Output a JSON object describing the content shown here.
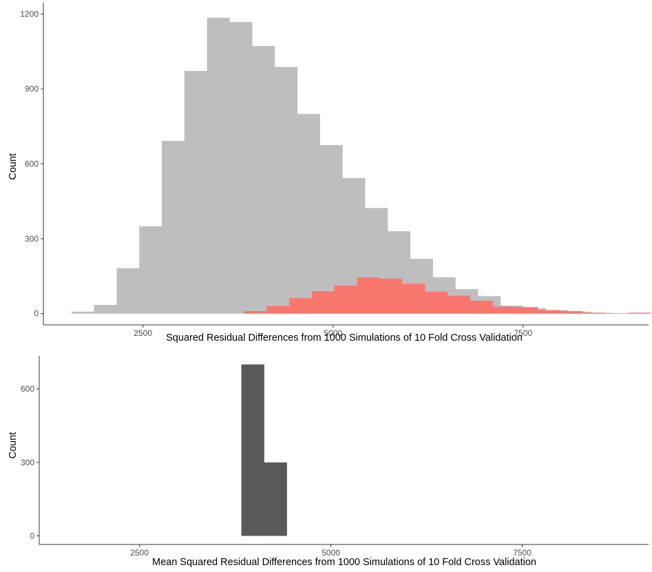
{
  "colors": {
    "background": "#ffffff",
    "grey_series": "#bebebe",
    "red_series": "#f8766d",
    "dark_series": "#595959",
    "axis_line": "#333333",
    "tick_text": "#4d4d4d"
  },
  "chart_data": [
    {
      "type": "bar",
      "subtype": "histogram",
      "xlabel": "Squared Residual Differences from 1000 Simulations of 10 Fold Cross Validation",
      "ylabel": "Count",
      "xlim": [
        1190,
        9150
      ],
      "ylim": [
        -45,
        1245
      ],
      "x_ticks": [
        2500,
        5000,
        7500
      ],
      "x_tick_labels": [
        "2500",
        "5000",
        "7500"
      ],
      "y_ticks": [
        0,
        300,
        600,
        900,
        1200
      ],
      "y_tick_labels": [
        "0",
        "300",
        "600",
        "900",
        "1200"
      ],
      "bin_width": 297,
      "grid": false,
      "series": [
        {
          "color": "#bebebe",
          "bin_left_edges": [
            1560,
            1857,
            2154,
            2451,
            2748,
            3045,
            3342,
            3639,
            3936,
            4233,
            4530,
            4827,
            5124,
            5421,
            5718,
            6015,
            6312,
            6609,
            6906,
            7203,
            7500,
            7797,
            8094,
            8391
          ],
          "counts": [
            8,
            35,
            182,
            350,
            692,
            972,
            1185,
            1168,
            1072,
            988,
            800,
            675,
            543,
            423,
            330,
            220,
            146,
            98,
            70,
            32,
            22,
            14,
            8,
            3
          ]
        },
        {
          "color": "#f8766d",
          "bin_left_edges": [
            3830,
            4127,
            4424,
            4721,
            5018,
            5315,
            5612,
            5909,
            6206,
            6503,
            6800,
            7097,
            7394,
            7691,
            7988,
            8285,
            8582,
            8879
          ],
          "counts": [
            10,
            30,
            62,
            90,
            112,
            145,
            140,
            120,
            88,
            72,
            52,
            28,
            26,
            14,
            10,
            4,
            2,
            4
          ]
        }
      ]
    },
    {
      "type": "bar",
      "subtype": "histogram",
      "xlabel": "Mean Squared Residual Differences from 1000 Simulations of 10 Fold Cross Validation",
      "ylabel": "Count",
      "xlim": [
        1190,
        9150
      ],
      "ylim": [
        -35,
        735
      ],
      "x_ticks": [
        2500,
        5000,
        7500
      ],
      "x_tick_labels": [
        "2500",
        "5000",
        "7500"
      ],
      "y_ticks": [
        0,
        300,
        600
      ],
      "y_tick_labels": [
        "0",
        "300",
        "600"
      ],
      "bin_width": 297,
      "grid": false,
      "series": [
        {
          "color": "#595959",
          "bin_left_edges": [
            3830,
            4127
          ],
          "counts": [
            700,
            300
          ]
        }
      ]
    }
  ]
}
